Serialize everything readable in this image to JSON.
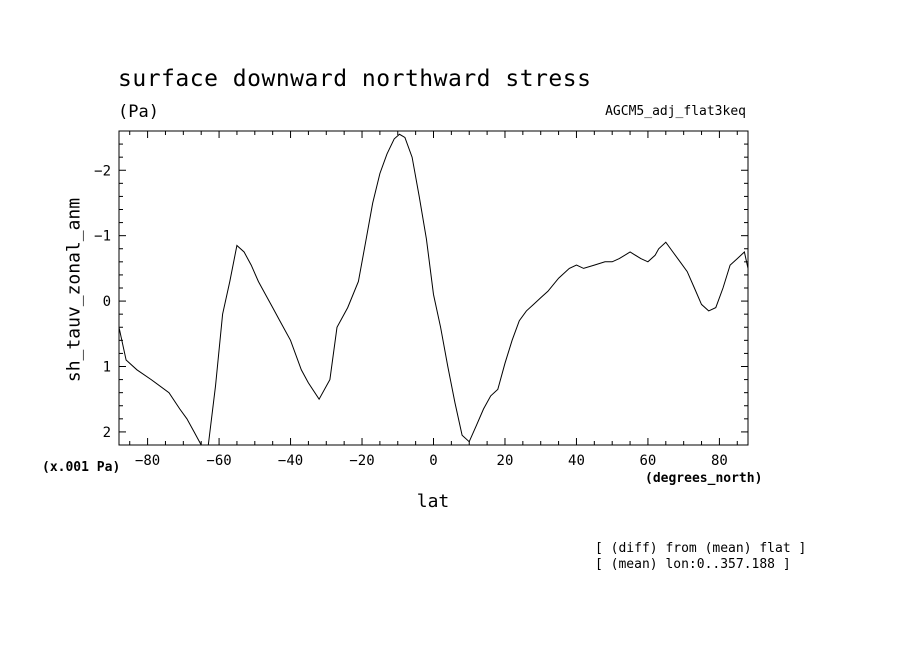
{
  "chart_data": {
    "type": "line",
    "title": "surface downward northward stress",
    "units": "(Pa)",
    "run_name": "AGCM5_adj_flat3keq",
    "ylabel": "sh_tauv_zonal_anm",
    "xlabel": "lat",
    "y_scale_note": "(x.001 Pa)",
    "x_units": "(degrees_north)",
    "notes": [
      "[ (diff) from (mean) flat ]",
      "[ (mean) lon:0..357.188 ]"
    ],
    "xlim": [
      -88,
      88
    ],
    "ylim": [
      2.2,
      -2.6
    ],
    "y_inverted": true,
    "x_ticks": [
      -80,
      -60,
      -40,
      -20,
      0,
      20,
      40,
      60,
      80
    ],
    "x_tick_labels": [
      "−80",
      "−60",
      "−40",
      "−20",
      "0",
      "20",
      "40",
      "60",
      "80"
    ],
    "y_ticks": [
      -2,
      -1,
      0,
      1,
      2
    ],
    "y_tick_labels": [
      "−2",
      "−1",
      "0",
      "1",
      "2"
    ],
    "grid": false,
    "series": [
      {
        "x": [
          -88,
          -86,
          -83,
          -79,
          -74,
          -71,
          -69,
          -67,
          -65,
          -63,
          -61,
          -59,
          -57,
          -55,
          -53,
          -51,
          -49,
          -47,
          -45,
          -43,
          -40,
          -37,
          -35,
          -32,
          -29,
          -27,
          -24,
          -21,
          -19,
          -17,
          -15,
          -13,
          -11,
          -9.5,
          -8,
          -6,
          -4,
          -2,
          0,
          2,
          4,
          6,
          8,
          10,
          12,
          14,
          16,
          18,
          20,
          22,
          24,
          26,
          28,
          30,
          32,
          35,
          38,
          40,
          42,
          45,
          48,
          50,
          52,
          55,
          58,
          60,
          62,
          63,
          65,
          67,
          69,
          71,
          73,
          75,
          77,
          79,
          81,
          83,
          85,
          87,
          88
        ],
        "y": [
          0.4,
          0.9,
          1.05,
          1.2,
          1.4,
          1.65,
          1.8,
          2.0,
          2.2,
          2.2,
          1.3,
          0.2,
          -0.3,
          -0.85,
          -0.75,
          -0.55,
          -0.3,
          -0.1,
          0.1,
          0.3,
          0.6,
          1.05,
          1.25,
          1.5,
          1.2,
          0.4,
          0.1,
          -0.3,
          -0.9,
          -1.5,
          -1.95,
          -2.25,
          -2.48,
          -2.55,
          -2.5,
          -2.2,
          -1.6,
          -0.95,
          -0.1,
          0.4,
          1.0,
          1.55,
          2.05,
          2.15,
          1.9,
          1.65,
          1.45,
          1.35,
          0.95,
          0.6,
          0.3,
          0.15,
          0.05,
          -0.05,
          -0.15,
          -0.35,
          -0.5,
          -0.55,
          -0.5,
          -0.55,
          -0.6,
          -0.6,
          -0.65,
          -0.75,
          -0.65,
          -0.6,
          -0.7,
          -0.8,
          -0.9,
          -0.75,
          -0.6,
          -0.45,
          -0.2,
          0.05,
          0.15,
          0.1,
          -0.2,
          -0.55,
          -0.65,
          -0.75,
          -0.5
        ]
      }
    ]
  }
}
